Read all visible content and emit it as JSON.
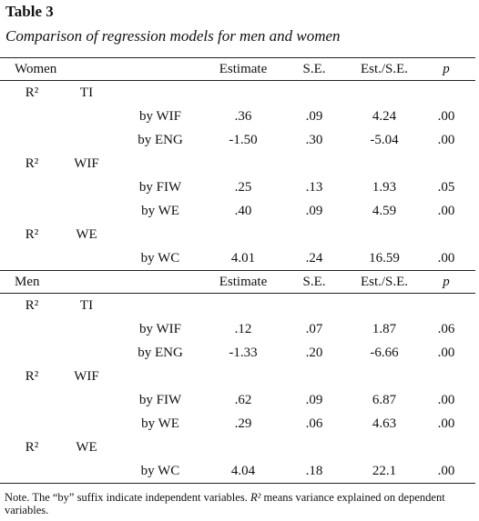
{
  "title": "Table 3",
  "subtitle": "Comparison of regression models for men and women",
  "sections": [
    {
      "header": [
        "Women",
        "Estimate",
        "S.E.",
        "Est./S.E.",
        "p"
      ],
      "groups": [
        {
          "r2": "R²",
          "dependent": "TI",
          "rows": [
            [
              "by WIF",
              ".36",
              ".09",
              "4.24",
              ".00"
            ],
            [
              "by ENG",
              "-1.50",
              ".30",
              "-5.04",
              ".00"
            ]
          ]
        },
        {
          "r2": "R²",
          "dependent": "WIF",
          "rows": [
            [
              "by FIW",
              ".25",
              ".13",
              "1.93",
              ".05"
            ],
            [
              "by WE",
              ".40",
              ".09",
              "4.59",
              ".00"
            ]
          ]
        },
        {
          "r2": "R²",
          "dependent": "WE",
          "rows": [
            [
              "by WC",
              "4.01",
              ".24",
              "16.59",
              ".00"
            ]
          ]
        }
      ]
    },
    {
      "header": [
        "Men",
        "Estimate",
        "S.E.",
        "Est./S.E.",
        "p"
      ],
      "groups": [
        {
          "r2": "R²",
          "dependent": "TI",
          "rows": [
            [
              "by WIF",
              ".12",
              ".07",
              "1.87",
              ".06"
            ],
            [
              "by ENG",
              "-1.33",
              ".20",
              "-6.66",
              ".00"
            ]
          ]
        },
        {
          "r2": "R²",
          "dependent": "WIF",
          "rows": [
            [
              "by FIW",
              ".62",
              ".09",
              "6.87",
              ".00"
            ],
            [
              "by WE",
              ".29",
              ".06",
              "4.63",
              ".00"
            ]
          ]
        },
        {
          "r2": "R²",
          "dependent": "WE",
          "rows": [
            [
              "by WC",
              "4.04",
              ".18",
              "22.1",
              ".00"
            ]
          ]
        }
      ]
    }
  ],
  "note": {
    "lead": "Note. The “by” suffix indicate independent variables.",
    "symbol": "R²",
    "rest": "means variance explained on dependent variables."
  }
}
